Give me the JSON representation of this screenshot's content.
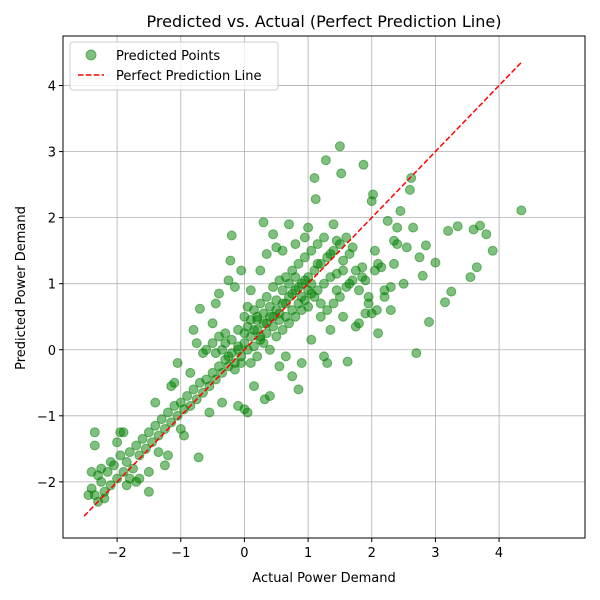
{
  "chart_data": {
    "type": "scatter",
    "title": "Predicted vs. Actual (Perfect Prediction Line)",
    "xlabel": "Actual Power Demand",
    "ylabel": "Predicted Power Demand",
    "xlim": [
      -2.85,
      5.35
    ],
    "ylim": [
      -2.85,
      4.75
    ],
    "xticks": [
      -2,
      -1,
      0,
      1,
      2,
      3,
      4
    ],
    "yticks": [
      -2,
      -1,
      0,
      1,
      2,
      3,
      4
    ],
    "grid": true,
    "legend_position": "top-left",
    "colors": {
      "points": "#008000",
      "line": "#ff0000"
    },
    "series": [
      {
        "name": "Predicted Points",
        "type": "scatter",
        "points": [
          [
            -2.4,
            -2.1
          ],
          [
            -2.35,
            -2.2
          ],
          [
            -2.3,
            -1.9
          ],
          [
            -2.25,
            -2.0
          ],
          [
            -2.2,
            -2.15
          ],
          [
            -2.15,
            -1.85
          ],
          [
            -2.1,
            -2.05
          ],
          [
            -2.05,
            -1.75
          ],
          [
            -2.0,
            -1.95
          ],
          [
            -1.95,
            -1.6
          ],
          [
            -1.9,
            -1.85
          ],
          [
            -1.85,
            -1.7
          ],
          [
            -1.8,
            -1.55
          ],
          [
            -1.75,
            -1.8
          ],
          [
            -1.7,
            -1.45
          ],
          [
            -1.65,
            -1.6
          ],
          [
            -1.6,
            -1.35
          ],
          [
            -1.55,
            -1.5
          ],
          [
            -1.5,
            -1.25
          ],
          [
            -1.45,
            -1.4
          ],
          [
            -1.4,
            -1.15
          ],
          [
            -1.35,
            -1.3
          ],
          [
            -1.3,
            -1.05
          ],
          [
            -1.25,
            -1.2
          ],
          [
            -1.2,
            -0.95
          ],
          [
            -1.15,
            -1.1
          ],
          [
            -1.1,
            -0.85
          ],
          [
            -1.05,
            -1.0
          ],
          [
            -1.0,
            -0.8
          ],
          [
            -0.95,
            -0.9
          ],
          [
            -0.9,
            -0.7
          ],
          [
            -0.85,
            -0.85
          ],
          [
            -0.8,
            -0.6
          ],
          [
            -0.75,
            -0.75
          ],
          [
            -0.7,
            -0.5
          ],
          [
            -0.65,
            -0.65
          ],
          [
            -0.6,
            -0.45
          ],
          [
            -0.55,
            -0.55
          ],
          [
            -0.5,
            -0.35
          ],
          [
            -0.45,
            -0.45
          ],
          [
            -0.4,
            -0.25
          ],
          [
            -0.35,
            -0.35
          ],
          [
            -0.3,
            -0.15
          ],
          [
            -0.25,
            -0.25
          ],
          [
            -0.2,
            -0.05
          ],
          [
            -0.15,
            -0.2
          ],
          [
            -0.1,
            0.05
          ],
          [
            -0.05,
            -0.1
          ],
          [
            0.0,
            0.1
          ],
          [
            0.05,
            0.0
          ],
          [
            0.1,
            0.2
          ],
          [
            0.15,
            0.05
          ],
          [
            0.2,
            0.3
          ],
          [
            0.25,
            0.15
          ],
          [
            0.3,
            0.4
          ],
          [
            0.35,
            0.25
          ],
          [
            0.4,
            0.5
          ],
          [
            0.45,
            0.35
          ],
          [
            0.5,
            0.6
          ],
          [
            0.55,
            0.45
          ],
          [
            0.6,
            0.7
          ],
          [
            0.65,
            0.5
          ],
          [
            0.7,
            0.8
          ],
          [
            0.75,
            0.6
          ],
          [
            0.8,
            0.9
          ],
          [
            0.85,
            0.7
          ],
          [
            0.9,
            1.0
          ],
          [
            0.95,
            0.75
          ],
          [
            1.0,
            1.1
          ],
          [
            1.05,
            0.85
          ],
          [
            1.1,
            1.2
          ],
          [
            1.15,
            0.9
          ],
          [
            1.2,
            1.3
          ],
          [
            1.25,
            1.0
          ],
          [
            1.3,
            1.4
          ],
          [
            1.35,
            1.1
          ],
          [
            1.4,
            1.5
          ],
          [
            1.45,
            1.15
          ],
          [
            1.5,
            1.6
          ],
          [
            1.55,
            1.2
          ],
          [
            -2.45,
            -2.2
          ],
          [
            -2.4,
            -1.85
          ],
          [
            -2.35,
            -1.45
          ],
          [
            -2.35,
            -1.25
          ],
          [
            -2.3,
            -2.3
          ],
          [
            -2.25,
            -1.8
          ],
          [
            -2.2,
            -2.25
          ],
          [
            -2.1,
            -1.7
          ],
          [
            -2.0,
            -1.4
          ],
          [
            -1.95,
            -1.25
          ],
          [
            -1.9,
            -1.25
          ],
          [
            -1.85,
            -2.05
          ],
          [
            -1.8,
            -1.95
          ],
          [
            -1.7,
            -2.0
          ],
          [
            -1.65,
            -1.95
          ],
          [
            -1.5,
            -2.15
          ],
          [
            -1.5,
            -1.85
          ],
          [
            -1.4,
            -0.8
          ],
          [
            -1.35,
            -1.55
          ],
          [
            -1.25,
            -1.75
          ],
          [
            -1.2,
            -1.6
          ],
          [
            -1.15,
            -0.55
          ],
          [
            -1.1,
            -0.5
          ],
          [
            -1.05,
            -0.2
          ],
          [
            -1.0,
            -1.2
          ],
          [
            -0.95,
            -1.3
          ],
          [
            -0.85,
            -0.35
          ],
          [
            -0.8,
            0.3
          ],
          [
            -0.75,
            0.1
          ],
          [
            -0.72,
            -1.63
          ],
          [
            -0.7,
            0.62
          ],
          [
            -0.65,
            -0.05
          ],
          [
            -0.6,
            0.0
          ],
          [
            -0.55,
            -0.95
          ],
          [
            -0.5,
            0.4
          ],
          [
            -0.45,
            0.7
          ],
          [
            -0.4,
            0.85
          ],
          [
            -0.35,
            -0.8
          ],
          [
            -0.3,
            0.25
          ],
          [
            -0.25,
            1.05
          ],
          [
            -0.22,
            1.35
          ],
          [
            -0.2,
            1.73
          ],
          [
            -0.15,
            0.95
          ],
          [
            -0.1,
            -0.85
          ],
          [
            -0.05,
            1.2
          ],
          [
            0.0,
            -0.9
          ],
          [
            0.05,
            -0.95
          ],
          [
            0.1,
            0.9
          ],
          [
            0.15,
            -0.55
          ],
          [
            0.2,
            0.5
          ],
          [
            0.25,
            1.2
          ],
          [
            0.3,
            1.93
          ],
          [
            0.32,
            -0.75
          ],
          [
            0.35,
            1.45
          ],
          [
            0.4,
            -0.7
          ],
          [
            0.45,
            1.75
          ],
          [
            0.5,
            1.55
          ],
          [
            0.55,
            -0.25
          ],
          [
            0.6,
            1.5
          ],
          [
            0.65,
            -0.1
          ],
          [
            0.7,
            1.9
          ],
          [
            0.75,
            -0.4
          ],
          [
            0.8,
            1.6
          ],
          [
            0.85,
            -0.6
          ],
          [
            0.9,
            -0.2
          ],
          [
            0.95,
            1.7
          ],
          [
            1.0,
            1.85
          ],
          [
            1.05,
            0.15
          ],
          [
            1.1,
            2.6
          ],
          [
            1.12,
            2.28
          ],
          [
            1.15,
            1.3
          ],
          [
            1.2,
            0.7
          ],
          [
            1.25,
            -0.1
          ],
          [
            1.28,
            2.87
          ],
          [
            1.3,
            -0.2
          ],
          [
            1.35,
            0.3
          ],
          [
            1.4,
            1.9
          ],
          [
            1.45,
            0.9
          ],
          [
            1.5,
            3.08
          ],
          [
            1.52,
            2.67
          ],
          [
            1.55,
            0.5
          ],
          [
            1.6,
            1.7
          ],
          [
            1.62,
            -0.18
          ],
          [
            1.65,
            1.0
          ],
          [
            1.7,
            1.55
          ],
          [
            1.75,
            0.35
          ],
          [
            1.8,
            0.4
          ],
          [
            1.85,
            1.1
          ],
          [
            1.87,
            2.8
          ],
          [
            1.9,
            0.55
          ],
          [
            1.95,
            0.7
          ],
          [
            2.0,
            2.25
          ],
          [
            2.02,
            2.35
          ],
          [
            2.05,
            1.5
          ],
          [
            2.08,
            0.6
          ],
          [
            2.1,
            0.25
          ],
          [
            2.15,
            1.25
          ],
          [
            2.2,
            0.8
          ],
          [
            2.25,
            1.95
          ],
          [
            2.3,
            0.95
          ],
          [
            2.35,
            1.65
          ],
          [
            2.4,
            1.85
          ],
          [
            2.45,
            2.1
          ],
          [
            2.5,
            1.0
          ],
          [
            2.55,
            1.55
          ],
          [
            2.6,
            2.42
          ],
          [
            2.62,
            2.6
          ],
          [
            2.65,
            1.85
          ],
          [
            2.7,
            -0.05
          ],
          [
            2.75,
            1.4
          ],
          [
            2.8,
            1.12
          ],
          [
            2.85,
            1.58
          ],
          [
            2.9,
            0.42
          ],
          [
            3.0,
            1.32
          ],
          [
            3.15,
            0.72
          ],
          [
            3.2,
            1.8
          ],
          [
            3.25,
            0.88
          ],
          [
            3.35,
            1.87
          ],
          [
            3.55,
            1.1
          ],
          [
            3.6,
            1.82
          ],
          [
            3.65,
            1.25
          ],
          [
            3.7,
            1.88
          ],
          [
            3.8,
            1.75
          ],
          [
            3.9,
            1.5
          ],
          [
            4.35,
            2.11
          ],
          [
            -0.1,
            0.3
          ],
          [
            0.0,
            0.5
          ],
          [
            0.05,
            0.35
          ],
          [
            0.1,
            -0.2
          ],
          [
            0.15,
            0.6
          ],
          [
            0.2,
            -0.1
          ],
          [
            0.25,
            0.7
          ],
          [
            0.3,
            0.1
          ],
          [
            0.35,
            0.8
          ],
          [
            0.4,
            0.0
          ],
          [
            0.45,
            0.95
          ],
          [
            0.5,
            0.2
          ],
          [
            0.55,
            1.05
          ],
          [
            0.6,
            0.3
          ],
          [
            0.65,
            1.1
          ],
          [
            0.7,
            0.4
          ],
          [
            0.75,
            1.2
          ],
          [
            0.8,
            0.5
          ],
          [
            0.85,
            1.3
          ],
          [
            0.9,
            0.6
          ],
          [
            0.95,
            1.4
          ],
          [
            1.0,
            0.65
          ],
          [
            1.05,
            1.5
          ],
          [
            1.1,
            0.8
          ],
          [
            1.15,
            1.6
          ],
          [
            1.2,
            0.5
          ],
          [
            1.25,
            1.7
          ],
          [
            1.3,
            0.6
          ],
          [
            1.35,
            1.45
          ],
          [
            1.4,
            0.7
          ],
          [
            1.45,
            1.65
          ],
          [
            1.5,
            0.8
          ],
          [
            1.55,
            1.35
          ],
          [
            1.6,
            0.95
          ],
          [
            1.65,
            1.45
          ],
          [
            1.7,
            1.05
          ],
          [
            1.75,
            1.2
          ],
          [
            1.8,
            0.9
          ],
          [
            1.85,
            1.25
          ],
          [
            1.9,
            1.05
          ],
          [
            1.95,
            0.8
          ],
          [
            2.0,
            0.55
          ],
          [
            2.05,
            1.2
          ],
          [
            2.1,
            1.3
          ],
          [
            2.2,
            0.9
          ],
          [
            2.3,
            0.6
          ],
          [
            2.35,
            1.3
          ],
          [
            2.4,
            1.6
          ],
          [
            -0.5,
            0.1
          ],
          [
            -0.45,
            -0.05
          ],
          [
            -0.4,
            0.2
          ],
          [
            -0.35,
            0.0
          ],
          [
            -0.3,
            0.1
          ],
          [
            -0.25,
            -0.1
          ],
          [
            -0.2,
            0.15
          ],
          [
            -0.15,
            -0.3
          ],
          [
            -0.1,
            0.0
          ],
          [
            -0.05,
            -0.2
          ],
          [
            0.0,
            0.25
          ],
          [
            0.05,
            0.65
          ],
          [
            0.1,
            0.45
          ],
          [
            0.15,
            0.3
          ],
          [
            0.2,
            0.45
          ],
          [
            0.25,
            0.2
          ],
          [
            0.3,
            0.55
          ],
          [
            0.35,
            0.4
          ],
          [
            0.4,
            0.65
          ],
          [
            0.45,
            0.5
          ],
          [
            0.5,
            0.75
          ],
          [
            0.55,
            0.55
          ],
          [
            0.6,
            0.9
          ],
          [
            0.65,
            0.7
          ],
          [
            0.7,
            1.0
          ],
          [
            0.75,
            0.85
          ],
          [
            0.8,
            1.1
          ],
          [
            0.85,
            0.95
          ],
          [
            0.9,
            0.8
          ],
          [
            0.95,
            1.05
          ],
          [
            1.0,
            0.9
          ],
          [
            1.05,
            1.0
          ]
        ]
      },
      {
        "name": "Perfect Prediction Line",
        "type": "line",
        "style": "dashed",
        "points": [
          [
            -2.52,
            -2.52
          ],
          [
            4.37,
            4.37
          ]
        ]
      }
    ]
  }
}
